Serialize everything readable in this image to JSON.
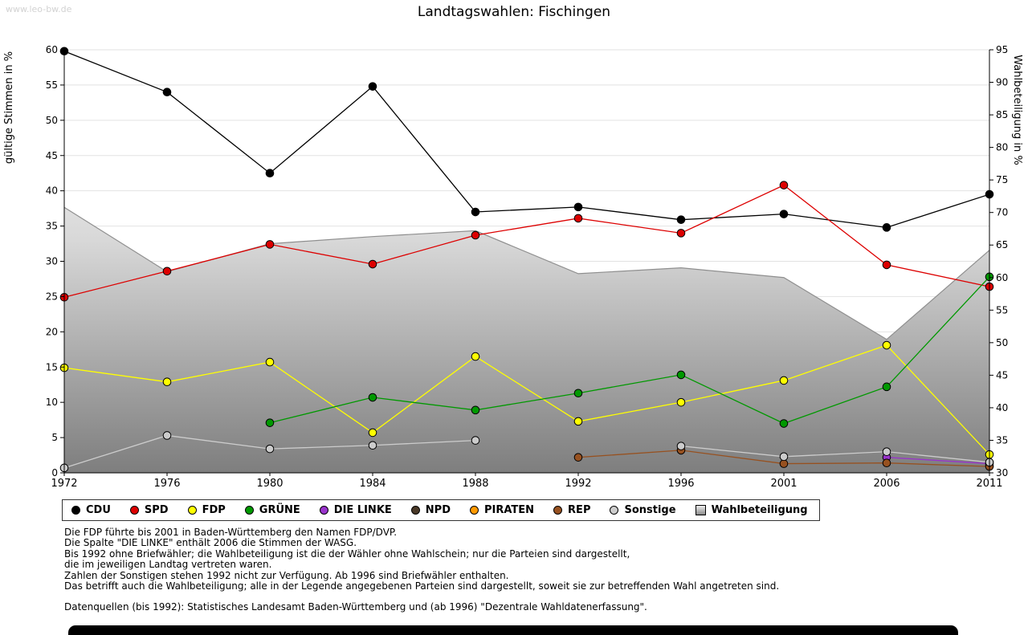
{
  "watermark": "www.leo-bw.de",
  "title": "Landtagswahlen: Fischingen",
  "chart_data": {
    "type": "line",
    "title": "Landtagswahlen: Fischingen",
    "x_categories": [
      "1972",
      "1976",
      "1980",
      "1984",
      "1988",
      "1992",
      "1996",
      "2001",
      "2006",
      "2011"
    ],
    "left_axis": {
      "label": "gültige Stimmen in %",
      "min": 0,
      "max": 60,
      "tick_step": 5
    },
    "right_axis": {
      "label": "Wahlbeteiligung in %",
      "min": 30,
      "max": 95,
      "tick_step": 5
    },
    "grid": true,
    "legend_position": "bottom",
    "area_series": {
      "name": "Wahlbeteiligung",
      "axis": "right",
      "outline_color": "#8f8f8f",
      "fill_top": "#ffffff",
      "fill_mid": "#d8d8d8",
      "fill_bottom": "#7e7e7e",
      "values": [
        70.8,
        60.9,
        65.2,
        66.3,
        67.2,
        60.6,
        61.5,
        60.0,
        50.5,
        64.2
      ]
    },
    "series": [
      {
        "name": "CDU",
        "color": "#000000",
        "values": [
          59.8,
          54.0,
          42.5,
          54.8,
          37.0,
          37.7,
          35.9,
          36.7,
          34.8,
          39.5
        ]
      },
      {
        "name": "SPD",
        "color": "#dd0000",
        "values": [
          24.9,
          28.6,
          32.4,
          29.6,
          33.7,
          36.1,
          34.0,
          40.8,
          29.5,
          26.4
        ]
      },
      {
        "name": "FDP",
        "color": "#ffff00",
        "values": [
          14.9,
          12.9,
          15.7,
          5.7,
          16.5,
          7.3,
          10.0,
          13.1,
          18.1,
          2.6
        ]
      },
      {
        "name": "GRÜNE",
        "color": "#009900",
        "values": [
          null,
          null,
          7.1,
          10.7,
          8.9,
          11.3,
          13.9,
          7.0,
          12.2,
          27.8
        ]
      },
      {
        "name": "DIE LINKE",
        "color": "#9933cc",
        "values": [
          null,
          null,
          null,
          null,
          null,
          null,
          null,
          null,
          2.2,
          1.3
        ]
      },
      {
        "name": "NPD",
        "color": "#4a3928",
        "values": [
          null,
          null,
          null,
          null,
          null,
          null,
          null,
          null,
          null,
          1.0
        ]
      },
      {
        "name": "PIRATEN",
        "color": "#ff9900",
        "values": [
          null,
          null,
          null,
          null,
          null,
          null,
          null,
          null,
          null,
          1.5
        ]
      },
      {
        "name": "REP",
        "color": "#975120",
        "values": [
          null,
          null,
          null,
          null,
          null,
          2.2,
          3.2,
          1.3,
          1.4,
          0.9
        ]
      },
      {
        "name": "Sonstige",
        "color": "#cccccc",
        "values": [
          0.7,
          5.3,
          3.4,
          3.9,
          4.6,
          null,
          3.8,
          2.3,
          3.0,
          1.5
        ]
      }
    ]
  },
  "footnotes": [
    "Die FDP führte bis 2001 in Baden-Württemberg den Namen FDP/DVP.",
    "Die Spalte \"DIE LINKE\" enthält 2006 die Stimmen der WASG.",
    "Bis 1992 ohne Briefwähler; die Wahlbeteiligung ist die der Wähler ohne Wahlschein; nur die Parteien sind dargestellt,",
    "die im jeweiligen Landtag vertreten waren.",
    "Zahlen der Sonstigen stehen 1992 nicht zur Verfügung. Ab 1996 sind Briefwähler enthalten.",
    "Das betrifft auch die Wahlbeteiligung; alle in der Legende angegebenen Parteien sind dargestellt, soweit sie zur betreffenden Wahl angetreten sind."
  ],
  "source": "Datenquellen (bis 1992): Statistisches Landesamt Baden-Württemberg und (ab 1996) \"Dezentrale Wahldatenerfassung\"."
}
